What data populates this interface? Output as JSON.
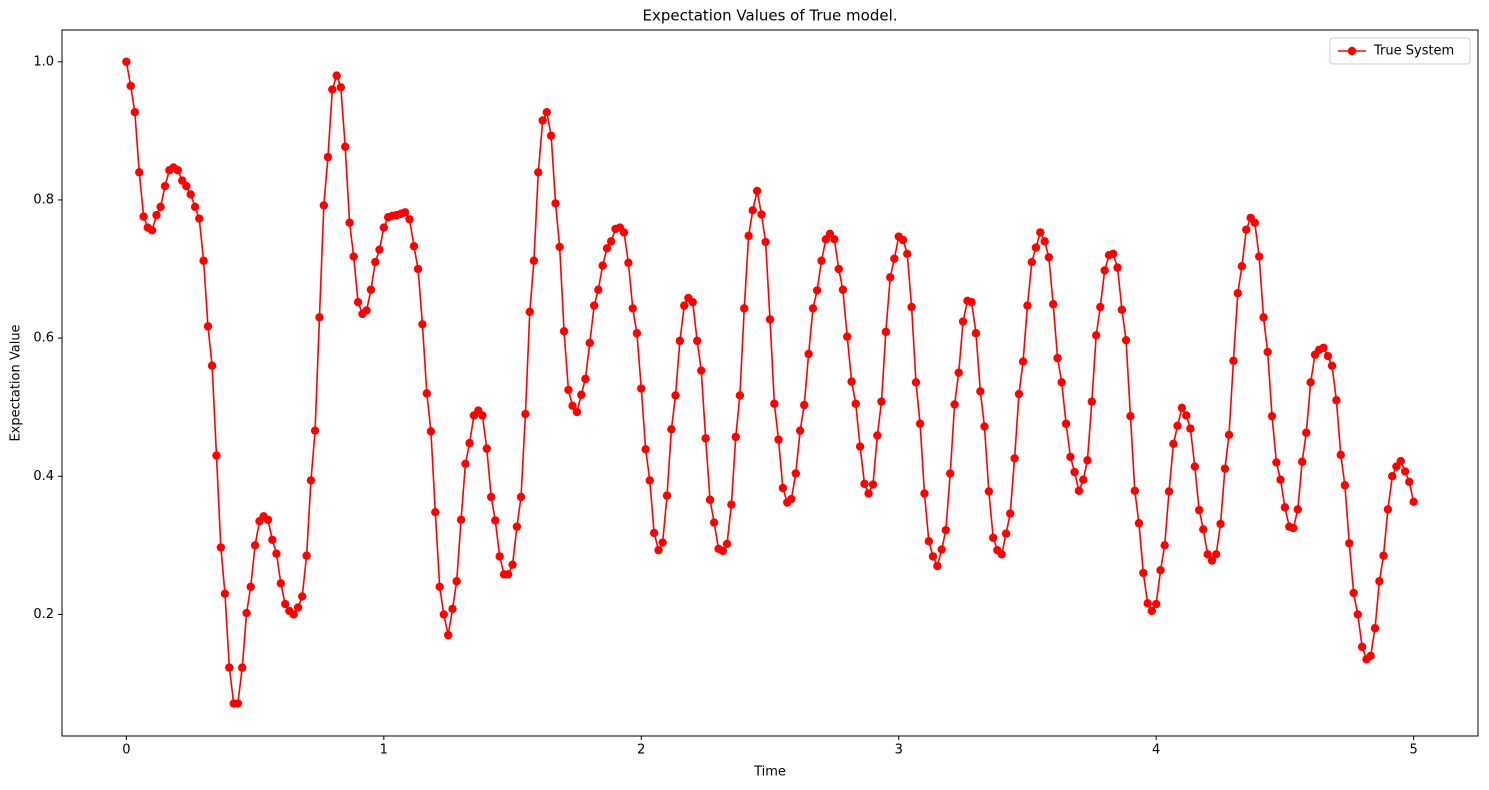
{
  "chart_data": {
    "type": "line",
    "title": "Expectation Values of True model.",
    "xlabel": "Time",
    "ylabel": "Expectation Value",
    "legend": "upper right",
    "grid": false,
    "xlim": [
      -0.25,
      5.25
    ],
    "ylim": [
      0.024,
      1.046
    ],
    "xticks": [
      0,
      1,
      2,
      3,
      4,
      5
    ],
    "yticks": [
      0.2,
      0.4,
      0.6,
      0.8,
      {
        "value": 1,
        "label": "1.0"
      }
    ],
    "x": [
      0,
      0.017,
      0.033,
      0.05,
      0.067,
      0.083,
      0.1,
      0.117,
      0.133,
      0.15,
      0.167,
      0.183,
      0.2,
      0.217,
      0.233,
      0.25,
      0.267,
      0.283,
      0.3,
      0.317,
      0.333,
      0.35,
      0.367,
      0.383,
      0.4,
      0.417,
      0.433,
      0.45,
      0.467,
      0.483,
      0.5,
      0.517,
      0.533,
      0.55,
      0.567,
      0.583,
      0.6,
      0.617,
      0.633,
      0.65,
      0.667,
      0.683,
      0.7,
      0.717,
      0.733,
      0.75,
      0.767,
      0.783,
      0.8,
      0.817,
      0.833,
      0.85,
      0.867,
      0.883,
      0.9,
      0.917,
      0.933,
      0.95,
      0.967,
      0.983,
      1,
      1.017,
      1.033,
      1.05,
      1.067,
      1.083,
      1.1,
      1.117,
      1.133,
      1.15,
      1.167,
      1.183,
      1.2,
      1.217,
      1.233,
      1.25,
      1.267,
      1.283,
      1.3,
      1.317,
      1.333,
      1.35,
      1.367,
      1.383,
      1.4,
      1.417,
      1.433,
      1.45,
      1.467,
      1.483,
      1.5,
      1.517,
      1.533,
      1.55,
      1.567,
      1.583,
      1.6,
      1.617,
      1.633,
      1.65,
      1.667,
      1.683,
      1.7,
      1.717,
      1.733,
      1.75,
      1.767,
      1.783,
      1.8,
      1.817,
      1.833,
      1.85,
      1.867,
      1.883,
      1.9,
      1.917,
      1.933,
      1.95,
      1.967,
      1.983,
      2,
      2.017,
      2.033,
      2.05,
      2.067,
      2.083,
      2.1,
      2.117,
      2.133,
      2.15,
      2.167,
      2.183,
      2.2,
      2.217,
      2.233,
      2.25,
      2.267,
      2.283,
      2.3,
      2.317,
      2.333,
      2.35,
      2.367,
      2.383,
      2.4,
      2.417,
      2.433,
      2.45,
      2.467,
      2.483,
      2.5,
      2.517,
      2.533,
      2.55,
      2.567,
      2.583,
      2.6,
      2.617,
      2.633,
      2.65,
      2.667,
      2.683,
      2.7,
      2.717,
      2.733,
      2.75,
      2.767,
      2.783,
      2.8,
      2.817,
      2.833,
      2.85,
      2.867,
      2.883,
      2.9,
      2.917,
      2.933,
      2.95,
      2.967,
      2.983,
      3,
      3.017,
      3.033,
      3.05,
      3.067,
      3.083,
      3.1,
      3.117,
      3.133,
      3.15,
      3.167,
      3.183,
      3.2,
      3.217,
      3.233,
      3.25,
      3.267,
      3.283,
      3.3,
      3.317,
      3.333,
      3.35,
      3.367,
      3.383,
      3.4,
      3.417,
      3.433,
      3.45,
      3.467,
      3.483,
      3.5,
      3.517,
      3.533,
      3.55,
      3.567,
      3.583,
      3.6,
      3.617,
      3.633,
      3.65,
      3.667,
      3.683,
      3.7,
      3.717,
      3.733,
      3.75,
      3.767,
      3.783,
      3.8,
      3.817,
      3.833,
      3.85,
      3.867,
      3.883,
      3.9,
      3.917,
      3.933,
      3.95,
      3.967,
      3.983,
      4,
      4.017,
      4.033,
      4.05,
      4.067,
      4.083,
      4.1,
      4.117,
      4.133,
      4.15,
      4.167,
      4.183,
      4.2,
      4.217,
      4.233,
      4.25,
      4.267,
      4.283,
      4.3,
      4.317,
      4.333,
      4.35,
      4.367,
      4.383,
      4.4,
      4.417,
      4.433,
      4.45,
      4.467,
      4.483,
      4.5,
      4.517,
      4.533,
      4.55,
      4.567,
      4.583,
      4.6,
      4.617,
      4.633,
      4.65,
      4.667,
      4.683,
      4.7,
      4.717,
      4.733,
      4.75,
      4.767,
      4.783,
      4.8,
      4.817,
      4.833,
      4.85,
      4.867,
      4.883,
      4.9,
      4.917,
      4.933,
      4.95,
      4.967,
      4.983,
      5
    ],
    "series": [
      {
        "name": "True System",
        "color": "#ff0000",
        "values": [
          1.0,
          0.965,
          0.927,
          0.84,
          0.776,
          0.76,
          0.756,
          0.778,
          0.79,
          0.82,
          0.843,
          0.847,
          0.843,
          0.828,
          0.82,
          0.808,
          0.79,
          0.773,
          0.712,
          0.617,
          0.56,
          0.43,
          0.297,
          0.23,
          0.123,
          0.071,
          0.071,
          0.123,
          0.202,
          0.24,
          0.3,
          0.335,
          0.342,
          0.337,
          0.308,
          0.288,
          0.245,
          0.215,
          0.205,
          0.2,
          0.21,
          0.226,
          0.285,
          0.394,
          0.466,
          0.63,
          0.792,
          0.862,
          0.96,
          0.98,
          0.963,
          0.877,
          0.767,
          0.718,
          0.652,
          0.635,
          0.64,
          0.67,
          0.71,
          0.728,
          0.76,
          0.775,
          0.777,
          0.778,
          0.78,
          0.782,
          0.772,
          0.733,
          0.7,
          0.62,
          0.52,
          0.465,
          0.348,
          0.24,
          0.2,
          0.17,
          0.208,
          0.248,
          0.337,
          0.418,
          0.448,
          0.488,
          0.495,
          0.488,
          0.44,
          0.37,
          0.336,
          0.284,
          0.258,
          0.258,
          0.272,
          0.327,
          0.37,
          0.49,
          0.638,
          0.712,
          0.84,
          0.915,
          0.927,
          0.893,
          0.795,
          0.732,
          0.61,
          0.525,
          0.502,
          0.493,
          0.518,
          0.541,
          0.593,
          0.647,
          0.67,
          0.705,
          0.73,
          0.74,
          0.758,
          0.76,
          0.753,
          0.709,
          0.643,
          0.607,
          0.527,
          0.439,
          0.394,
          0.318,
          0.293,
          0.304,
          0.372,
          0.468,
          0.517,
          0.596,
          0.647,
          0.658,
          0.652,
          0.596,
          0.553,
          0.455,
          0.366,
          0.333,
          0.295,
          0.292,
          0.302,
          0.359,
          0.457,
          0.517,
          0.643,
          0.748,
          0.785,
          0.813,
          0.779,
          0.739,
          0.627,
          0.505,
          0.453,
          0.383,
          0.362,
          0.367,
          0.404,
          0.466,
          0.503,
          0.577,
          0.643,
          0.669,
          0.712,
          0.743,
          0.751,
          0.743,
          0.7,
          0.67,
          0.602,
          0.537,
          0.505,
          0.443,
          0.389,
          0.375,
          0.388,
          0.459,
          0.508,
          0.609,
          0.688,
          0.715,
          0.747,
          0.742,
          0.722,
          0.645,
          0.536,
          0.476,
          0.375,
          0.306,
          0.284,
          0.27,
          0.294,
          0.322,
          0.404,
          0.504,
          0.55,
          0.624,
          0.654,
          0.652,
          0.607,
          0.523,
          0.472,
          0.378,
          0.311,
          0.293,
          0.287,
          0.317,
          0.346,
          0.426,
          0.519,
          0.566,
          0.647,
          0.71,
          0.731,
          0.753,
          0.74,
          0.717,
          0.649,
          0.571,
          0.536,
          0.476,
          0.428,
          0.406,
          0.379,
          0.395,
          0.423,
          0.508,
          0.604,
          0.645,
          0.698,
          0.72,
          0.722,
          0.702,
          0.641,
          0.597,
          0.487,
          0.379,
          0.332,
          0.26,
          0.216,
          0.205,
          0.215,
          0.264,
          0.3,
          0.378,
          0.447,
          0.473,
          0.499,
          0.488,
          0.469,
          0.414,
          0.351,
          0.323,
          0.287,
          0.278,
          0.287,
          0.331,
          0.411,
          0.46,
          0.567,
          0.665,
          0.704,
          0.757,
          0.774,
          0.767,
          0.718,
          0.63,
          0.58,
          0.487,
          0.42,
          0.395,
          0.355,
          0.327,
          0.325,
          0.352,
          0.421,
          0.463,
          0.536,
          0.576,
          0.583,
          0.586,
          0.574,
          0.56,
          0.51,
          0.431,
          0.387,
          0.303,
          0.231,
          0.2,
          0.153,
          0.135,
          0.14,
          0.18,
          0.248,
          0.285,
          0.352,
          0.4,
          0.414,
          0.422,
          0.407,
          0.392,
          0.363
        ]
      }
    ]
  }
}
